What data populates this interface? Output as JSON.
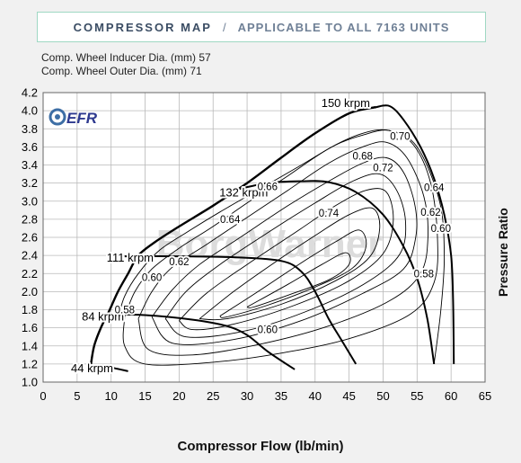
{
  "header": {
    "title": "COMPRESSOR MAP",
    "separator": "/",
    "subtitle": "APPLICABLE TO ALL 7163  UNITS"
  },
  "specs": {
    "inducer": "Comp. Wheel Inducer Dia. (mm) 57",
    "outer": "Comp. Wheel Outer Dia. (mm) 71"
  },
  "logo": {
    "text": "EFR",
    "watermark": "BorgWarner"
  },
  "colors": {
    "accent_border": "#9fd8c3",
    "title": "#3b4d64",
    "grid": "#b9b9b9",
    "line": "#000000"
  },
  "chart_data": {
    "type": "line",
    "title": "COMPRESSOR MAP",
    "xlabel": "Compressor Flow (lb/min)",
    "ylabel": "Pressure Ratio",
    "xlim": [
      0,
      65
    ],
    "ylim": [
      1.0,
      4.2
    ],
    "xticks": [
      0,
      5,
      10,
      15,
      20,
      25,
      30,
      35,
      40,
      45,
      50,
      55,
      60,
      65
    ],
    "yticks": [
      1.0,
      1.2,
      1.4,
      1.6,
      1.8,
      2.0,
      2.2,
      2.4,
      2.6,
      2.8,
      3.0,
      3.2,
      3.4,
      3.6,
      3.8,
      4.0,
      4.2
    ],
    "grid": true,
    "surge_line": [
      [
        7,
        1.18
      ],
      [
        7.5,
        1.4
      ],
      [
        8.5,
        1.6
      ],
      [
        9.8,
        1.8
      ],
      [
        11,
        2.0
      ],
      [
        12.5,
        2.2
      ],
      [
        14,
        2.4
      ],
      [
        16.5,
        2.55
      ],
      [
        20,
        2.72
      ],
      [
        25,
        2.95
      ],
      [
        30,
        3.2
      ],
      [
        35,
        3.48
      ],
      [
        40,
        3.75
      ],
      [
        45,
        3.97
      ],
      [
        49,
        4.04
      ]
    ],
    "speed_lines": [
      {
        "name": "44 krpm",
        "points": [
          [
            7,
            1.18
          ],
          [
            10,
            1.16
          ],
          [
            12.5,
            1.12
          ]
        ]
      },
      {
        "name": "84 krpm",
        "points": [
          [
            8.5,
            1.75
          ],
          [
            15,
            1.74
          ],
          [
            22,
            1.69
          ],
          [
            27,
            1.62
          ],
          [
            30,
            1.52
          ],
          [
            33,
            1.34
          ],
          [
            37,
            1.14
          ]
        ]
      },
      {
        "name": "111 krpm",
        "points": [
          [
            12,
            2.39
          ],
          [
            20,
            2.39
          ],
          [
            28,
            2.38
          ],
          [
            35,
            2.34
          ],
          [
            38,
            2.22
          ],
          [
            40,
            2.0
          ],
          [
            42,
            1.7
          ],
          [
            44,
            1.45
          ],
          [
            46,
            1.2
          ]
        ]
      },
      {
        "name": "132 krpm",
        "points": [
          [
            28,
            3.12
          ],
          [
            33,
            3.2
          ],
          [
            38,
            3.22
          ],
          [
            42,
            3.21
          ],
          [
            46,
            3.1
          ],
          [
            50,
            2.85
          ],
          [
            53,
            2.5
          ],
          [
            55,
            2.15
          ],
          [
            56.5,
            1.7
          ],
          [
            57.5,
            1.2
          ]
        ]
      },
      {
        "name": "150 krpm",
        "points": [
          [
            49,
            4.04
          ],
          [
            51,
            4.05
          ],
          [
            53,
            3.9
          ],
          [
            55.5,
            3.6
          ],
          [
            57.5,
            3.25
          ],
          [
            59,
            2.85
          ],
          [
            60,
            2.4
          ],
          [
            60.3,
            1.9
          ],
          [
            60.4,
            1.2
          ]
        ]
      }
    ],
    "efficiency_islands": [
      {
        "name": "0.58",
        "points": [
          [
            11,
            1.7
          ],
          [
            12,
            1.95
          ],
          [
            14,
            2.2
          ],
          [
            17,
            2.45
          ],
          [
            21,
            2.65
          ],
          [
            26,
            2.88
          ],
          [
            32,
            3.14
          ],
          [
            38,
            3.4
          ],
          [
            43,
            3.62
          ],
          [
            47,
            3.73
          ],
          [
            51,
            3.78
          ],
          [
            55,
            3.6
          ],
          [
            58.3,
            3.0
          ],
          [
            59,
            2.4
          ],
          [
            58.5,
            1.8
          ],
          [
            57.5,
            1.2
          ]
        ]
      },
      {
        "name": "0.60",
        "points": [
          [
            12,
            1.72
          ],
          [
            13.5,
            2.0
          ],
          [
            16,
            2.25
          ],
          [
            20,
            2.48
          ],
          [
            25,
            2.72
          ],
          [
            30,
            2.98
          ],
          [
            36,
            3.28
          ],
          [
            42,
            3.58
          ],
          [
            47,
            3.75
          ],
          [
            51,
            3.78
          ],
          [
            54.5,
            3.62
          ],
          [
            57,
            3.2
          ],
          [
            58,
            2.6
          ],
          [
            57.5,
            2.1
          ],
          [
            54,
            1.75
          ],
          [
            45,
            1.48
          ],
          [
            35,
            1.32
          ],
          [
            25,
            1.22
          ],
          [
            15,
            1.2
          ],
          [
            12,
            1.4
          ],
          [
            12,
            1.72
          ]
        ]
      },
      {
        "name": "0.62",
        "points": [
          [
            14,
            1.7
          ],
          [
            16,
            2.0
          ],
          [
            19,
            2.27
          ],
          [
            24,
            2.52
          ],
          [
            30,
            2.82
          ],
          [
            36,
            3.12
          ],
          [
            42,
            3.42
          ],
          [
            47,
            3.6
          ],
          [
            50.5,
            3.65
          ],
          [
            53.5,
            3.48
          ],
          [
            56,
            3.05
          ],
          [
            56.6,
            2.6
          ],
          [
            55.5,
            2.2
          ],
          [
            51,
            1.9
          ],
          [
            42,
            1.62
          ],
          [
            32,
            1.42
          ],
          [
            22,
            1.3
          ],
          [
            15.5,
            1.36
          ],
          [
            14,
            1.7
          ]
        ]
      },
      {
        "name": "0.64",
        "points": [
          [
            16,
            1.72
          ],
          [
            19,
            2.02
          ],
          [
            23,
            2.3
          ],
          [
            29,
            2.6
          ],
          [
            36,
            2.95
          ],
          [
            42,
            3.22
          ],
          [
            47,
            3.42
          ],
          [
            50.5,
            3.48
          ],
          [
            53,
            3.32
          ],
          [
            54.7,
            2.95
          ],
          [
            54.8,
            2.6
          ],
          [
            53,
            2.25
          ],
          [
            47,
            1.98
          ],
          [
            38,
            1.68
          ],
          [
            28,
            1.47
          ],
          [
            19,
            1.43
          ],
          [
            16,
            1.72
          ]
        ]
      },
      {
        "name": "0.66",
        "points": [
          [
            18,
            1.7
          ],
          [
            21,
            2.0
          ],
          [
            26,
            2.3
          ],
          [
            33,
            2.65
          ],
          [
            40,
            2.98
          ],
          [
            45.5,
            3.22
          ],
          [
            49.5,
            3.3
          ],
          [
            52,
            3.12
          ],
          [
            53.3,
            2.78
          ],
          [
            52.5,
            2.42
          ],
          [
            48,
            2.12
          ],
          [
            40,
            1.82
          ],
          [
            30,
            1.57
          ],
          [
            21,
            1.5
          ],
          [
            18,
            1.7
          ]
        ]
      },
      {
        "name": "0.68",
        "points": [
          [
            20,
            1.68
          ],
          [
            24,
            1.98
          ],
          [
            30,
            2.3
          ],
          [
            37,
            2.65
          ],
          [
            43,
            2.95
          ],
          [
            47.5,
            3.12
          ],
          [
            50.5,
            3.1
          ],
          [
            51.5,
            2.78
          ],
          [
            50,
            2.42
          ],
          [
            45,
            2.12
          ],
          [
            37,
            1.85
          ],
          [
            28,
            1.64
          ],
          [
            22,
            1.58
          ],
          [
            20,
            1.68
          ]
        ]
      },
      {
        "name": "0.70",
        "points": [
          [
            23,
            1.7
          ],
          [
            28,
            2.0
          ],
          [
            34,
            2.32
          ],
          [
            40,
            2.62
          ],
          [
            45,
            2.85
          ],
          [
            48.5,
            2.92
          ],
          [
            49.5,
            2.7
          ],
          [
            48,
            2.38
          ],
          [
            43,
            2.12
          ],
          [
            35,
            1.86
          ],
          [
            27,
            1.7
          ],
          [
            23,
            1.7
          ]
        ]
      },
      {
        "name": "0.72",
        "points": [
          [
            26,
            1.73
          ],
          [
            32,
            2.02
          ],
          [
            38,
            2.32
          ],
          [
            43,
            2.55
          ],
          [
            46.5,
            2.68
          ],
          [
            47.5,
            2.5
          ],
          [
            45.5,
            2.26
          ],
          [
            40,
            2.05
          ],
          [
            33,
            1.85
          ],
          [
            27,
            1.72
          ],
          [
            26,
            1.73
          ]
        ]
      },
      {
        "name": "0.74",
        "points": [
          [
            30,
            1.83
          ],
          [
            36,
            2.08
          ],
          [
            41,
            2.3
          ],
          [
            44.5,
            2.43
          ],
          [
            45,
            2.3
          ],
          [
            42,
            2.13
          ],
          [
            36,
            1.96
          ],
          [
            31,
            1.83
          ],
          [
            30,
            1.83
          ]
        ]
      }
    ],
    "speed_labels": [
      {
        "text": "150 krpm",
        "x": 44.5,
        "y": 4.08
      },
      {
        "text": "132 krpm",
        "x": 29.5,
        "y": 3.09
      },
      {
        "text": "111 krpm",
        "x": 12.8,
        "y": 2.37
      },
      {
        "text": "84 krpm",
        "x": 8.8,
        "y": 1.72
      },
      {
        "text": "44 krpm",
        "x": 7.2,
        "y": 1.15
      }
    ],
    "efficiency_labels": [
      {
        "text": "0.70",
        "x": 52.5,
        "y": 3.72
      },
      {
        "text": "0.68",
        "x": 47,
        "y": 3.5
      },
      {
        "text": "0.72",
        "x": 50,
        "y": 3.37
      },
      {
        "text": "0.66",
        "x": 33,
        "y": 3.16
      },
      {
        "text": "0.64",
        "x": 57.5,
        "y": 3.15
      },
      {
        "text": "0.74",
        "x": 42,
        "y": 2.87
      },
      {
        "text": "0.62",
        "x": 57,
        "y": 2.88
      },
      {
        "text": "0.64",
        "x": 27.5,
        "y": 2.8
      },
      {
        "text": "0.60",
        "x": 58.5,
        "y": 2.7
      },
      {
        "text": "0.62",
        "x": 20,
        "y": 2.33
      },
      {
        "text": "0.58",
        "x": 56,
        "y": 2.2
      },
      {
        "text": "0.60",
        "x": 16,
        "y": 2.16
      },
      {
        "text": "0.58",
        "x": 12,
        "y": 1.8
      },
      {
        "text": "0.60",
        "x": 33,
        "y": 1.58
      }
    ]
  }
}
